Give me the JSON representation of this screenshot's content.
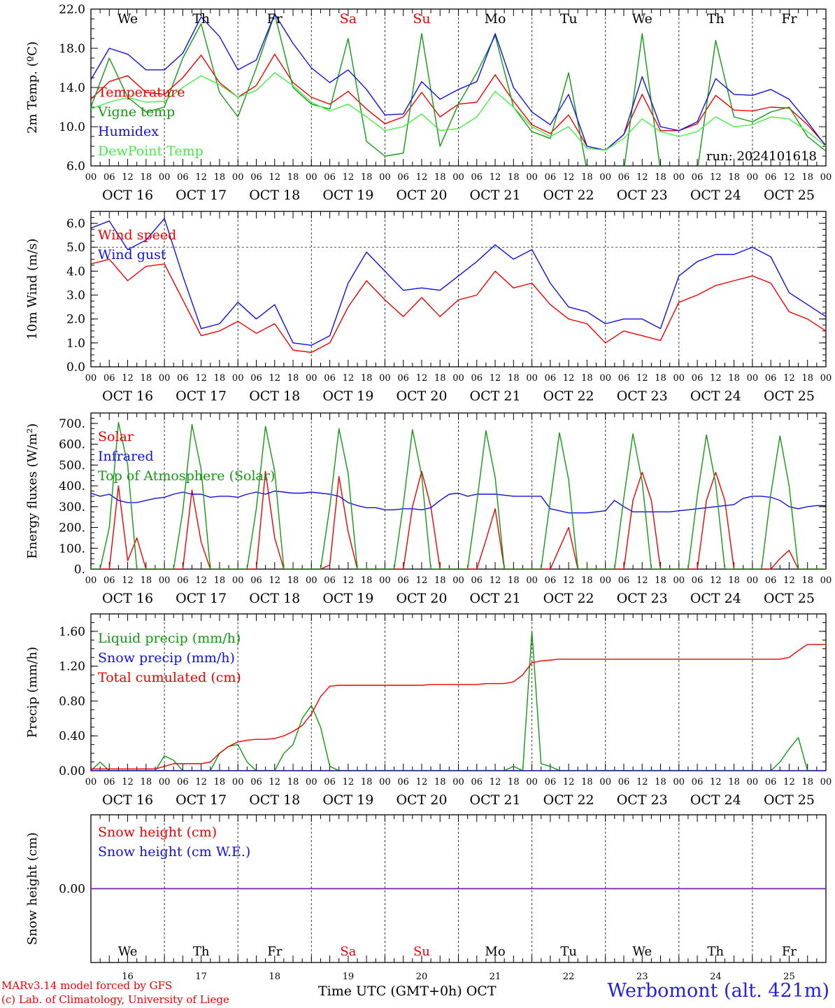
{
  "colors": {
    "red": "#ee0000",
    "green": "#119911",
    "blue": "#1111dd",
    "lightgreen": "#44ee44",
    "purple": "#7722aa",
    "frame": "#000000"
  },
  "days": {
    "date_labels": [
      "OCT 16",
      "OCT 17",
      "OCT 18",
      "OCT 19",
      "OCT 20",
      "OCT 21",
      "OCT 22",
      "OCT 23",
      "OCT 24",
      "OCT 25"
    ],
    "weekday_labels": [
      "We",
      "Th",
      "Fr",
      "Sa",
      "Su",
      "Mo",
      "Tu",
      "We",
      "Th",
      "Fr"
    ],
    "weekend_indices": [
      3,
      4
    ],
    "day_numbers": [
      "16",
      "17",
      "18",
      "19",
      "20",
      "21",
      "22",
      "23",
      "24",
      "25"
    ],
    "hour_ticks": [
      "00",
      "06",
      "12",
      "18"
    ],
    "end_tick": "00"
  },
  "footer": {
    "credit_line1": "MARv3.14 model forced by GFS",
    "credit_line2": "(c) Lab. of Climatology, University of Liege",
    "xaxis_title": "Time UTC (GMT+0h) OCT",
    "station": "Werbomont (alt. 421m)"
  },
  "chart_data": [
    {
      "type": "line",
      "ylabel": "2m Temp. (ºC)",
      "ylim": [
        6.0,
        22.0
      ],
      "yticks": [
        6.0,
        10.0,
        14.0,
        18.0,
        22.0
      ],
      "tick_decimals": 1,
      "run_label": "run: 2024101618",
      "x_hours": [
        0,
        6,
        12,
        18,
        24,
        30,
        36,
        42,
        48,
        54,
        60,
        66,
        72,
        78,
        84,
        90,
        96,
        102,
        108,
        114,
        120,
        126,
        132,
        138,
        144,
        150,
        156,
        162,
        168,
        174,
        180,
        186,
        192,
        198,
        204,
        210,
        216,
        222,
        228,
        234,
        240
      ],
      "series": [
        {
          "name": "Temperature",
          "color": "red",
          "values": [
            12.8,
            14.6,
            15.2,
            13.5,
            13.3,
            15.0,
            17.3,
            14.5,
            13.0,
            14.2,
            17.4,
            14.5,
            13.0,
            12.3,
            13.6,
            11.8,
            10.3,
            11.0,
            13.5,
            11.0,
            12.3,
            12.5,
            15.3,
            12.6,
            10.2,
            9.3,
            11.2,
            8.0,
            7.6,
            9.2,
            13.3,
            9.6,
            9.6,
            10.3,
            13.2,
            11.7,
            11.6,
            12.0,
            11.9,
            10.2,
            8.1
          ]
        },
        {
          "name": "Vigne temp",
          "color": "green",
          "values": [
            12.0,
            17.0,
            13.0,
            11.5,
            12.0,
            17.0,
            20.5,
            13.5,
            11.0,
            16.0,
            21.5,
            14.0,
            12.3,
            11.8,
            19.0,
            8.5,
            7.0,
            7.3,
            19.5,
            8.0,
            12.3,
            15.5,
            19.3,
            12.0,
            9.5,
            8.8,
            15.5,
            5.5,
            4.5,
            5.5,
            19.5,
            5.5,
            5.0,
            5.5,
            18.8,
            11.0,
            10.5,
            11.5,
            12.0,
            9.0,
            7.5
          ]
        },
        {
          "name": "Humidex",
          "color": "blue",
          "values": [
            14.8,
            18.0,
            17.4,
            15.8,
            15.8,
            17.5,
            21.2,
            19.2,
            15.8,
            16.8,
            21.5,
            18.5,
            16.0,
            14.5,
            15.8,
            13.8,
            11.2,
            11.3,
            14.6,
            12.8,
            13.8,
            14.6,
            19.5,
            14.0,
            11.5,
            10.2,
            13.3,
            8.0,
            7.6,
            9.2,
            15.1,
            10.0,
            9.6,
            10.5,
            14.9,
            13.3,
            13.2,
            13.8,
            12.8,
            10.5,
            8.0
          ]
        },
        {
          "name": "DewPoint Temp",
          "color": "lightgreen",
          "values": [
            11.8,
            12.5,
            13.0,
            12.5,
            12.6,
            14.0,
            15.2,
            14.3,
            13.0,
            13.7,
            15.5,
            14.2,
            12.5,
            11.6,
            12.3,
            11.0,
            9.6,
            10.0,
            11.3,
            9.6,
            9.8,
            11.0,
            13.6,
            12.0,
            10.0,
            9.0,
            10.0,
            7.8,
            7.6,
            8.8,
            10.8,
            9.5,
            9.0,
            9.5,
            11.0,
            10.0,
            10.2,
            11.0,
            10.8,
            9.5,
            8.0
          ]
        }
      ]
    },
    {
      "type": "line",
      "ylabel": "10m Wind (m/s)",
      "ylim": [
        0.0,
        6.5
      ],
      "yticks": [
        0.0,
        1.0,
        2.0,
        3.0,
        4.0,
        5.0,
        6.0
      ],
      "tick_decimals": 1,
      "reference_line": 5.0,
      "x_hours": [
        0,
        6,
        12,
        18,
        24,
        30,
        36,
        42,
        48,
        54,
        60,
        66,
        72,
        78,
        84,
        90,
        96,
        102,
        108,
        114,
        120,
        126,
        132,
        138,
        144,
        150,
        156,
        162,
        168,
        174,
        180,
        186,
        192,
        198,
        204,
        210,
        216,
        222,
        228,
        234,
        240
      ],
      "series": [
        {
          "name": "Wind speed",
          "color": "red",
          "values": [
            4.3,
            4.5,
            3.6,
            4.2,
            4.3,
            2.8,
            1.3,
            1.5,
            1.9,
            1.4,
            1.8,
            0.7,
            0.6,
            1.0,
            2.5,
            3.6,
            2.8,
            2.1,
            2.9,
            2.1,
            2.8,
            3.0,
            4.0,
            3.3,
            3.5,
            2.6,
            2.0,
            1.8,
            1.0,
            1.5,
            1.3,
            1.1,
            2.7,
            3.0,
            3.4,
            3.6,
            3.8,
            3.5,
            2.3,
            2.0,
            1.5
          ]
        },
        {
          "name": "Wind gust",
          "color": "blue",
          "values": [
            5.8,
            6.1,
            4.9,
            5.3,
            6.2,
            3.8,
            1.6,
            1.8,
            2.7,
            2.0,
            2.6,
            1.0,
            0.9,
            1.3,
            3.5,
            4.8,
            4.0,
            3.2,
            3.3,
            3.2,
            3.8,
            4.4,
            5.1,
            4.5,
            4.9,
            3.5,
            2.5,
            2.3,
            1.8,
            2.0,
            2.0,
            1.6,
            3.8,
            4.4,
            4.7,
            4.7,
            5.0,
            4.6,
            3.1,
            2.6,
            2.1
          ]
        }
      ]
    },
    {
      "type": "line",
      "ylabel": "Energy fluxes (W/m²)",
      "ylim": [
        0,
        750
      ],
      "yticks": [
        0,
        100,
        200,
        300,
        400,
        500,
        600,
        700
      ],
      "tick_decimals": 0,
      "tick_suffix": ".",
      "x_hours": [
        0,
        3,
        6,
        9,
        12,
        15,
        18,
        21,
        24,
        27,
        30,
        33,
        36,
        39,
        42,
        45,
        48,
        51,
        54,
        57,
        60,
        63,
        66,
        69,
        72,
        75,
        78,
        81,
        84,
        87,
        90,
        93,
        96,
        99,
        102,
        105,
        108,
        111,
        114,
        117,
        120,
        123,
        126,
        129,
        132,
        135,
        138,
        141,
        144,
        147,
        150,
        153,
        156,
        159,
        162,
        165,
        168,
        171,
        174,
        177,
        180,
        183,
        186,
        189,
        192,
        195,
        198,
        201,
        204,
        207,
        210,
        213,
        216,
        219,
        222,
        225,
        228,
        231,
        234,
        237,
        240
      ],
      "series": [
        {
          "name": "Solar",
          "color": "red",
          "values": [
            0,
            0,
            0,
            400,
            40,
            150,
            0,
            0,
            0,
            0,
            0,
            380,
            130,
            0,
            0,
            0,
            0,
            0,
            0,
            470,
            150,
            0,
            0,
            0,
            0,
            0,
            20,
            445,
            180,
            0,
            0,
            0,
            0,
            0,
            0,
            300,
            470,
            300,
            0,
            0,
            0,
            0,
            0,
            140,
            290,
            0,
            0,
            0,
            0,
            0,
            0,
            100,
            200,
            0,
            0,
            0,
            0,
            0,
            0,
            330,
            465,
            330,
            0,
            0,
            0,
            0,
            0,
            330,
            465,
            330,
            0,
            0,
            0,
            0,
            0,
            50,
            90,
            0,
            0,
            0,
            0
          ]
        },
        {
          "name": "Infrared",
          "color": "blue",
          "values": [
            365,
            350,
            360,
            330,
            320,
            320,
            330,
            340,
            345,
            360,
            370,
            360,
            360,
            345,
            350,
            350,
            345,
            360,
            370,
            360,
            375,
            370,
            365,
            365,
            370,
            365,
            360,
            350,
            320,
            305,
            295,
            295,
            285,
            285,
            290,
            290,
            285,
            295,
            330,
            360,
            365,
            350,
            360,
            360,
            360,
            355,
            350,
            350,
            350,
            350,
            290,
            280,
            270,
            270,
            270,
            275,
            280,
            330,
            300,
            275,
            275,
            275,
            275,
            275,
            280,
            285,
            290,
            295,
            300,
            305,
            310,
            340,
            350,
            350,
            345,
            330,
            300,
            290,
            300,
            305,
            305
          ]
        },
        {
          "name": "Top of Atmosphere (Solar)",
          "color": "green",
          "values": [
            0,
            0,
            200,
            705,
            500,
            0,
            0,
            0,
            0,
            0,
            280,
            695,
            480,
            0,
            0,
            0,
            0,
            0,
            290,
            685,
            470,
            0,
            0,
            0,
            0,
            0,
            300,
            675,
            460,
            0,
            0,
            0,
            0,
            0,
            310,
            670,
            450,
            0,
            0,
            0,
            0,
            0,
            320,
            665,
            440,
            0,
            0,
            0,
            0,
            0,
            330,
            655,
            430,
            0,
            0,
            0,
            0,
            0,
            340,
            650,
            420,
            0,
            0,
            0,
            0,
            0,
            350,
            645,
            410,
            0,
            0,
            0,
            0,
            0,
            360,
            640,
            400,
            0,
            0,
            0,
            0
          ]
        }
      ]
    },
    {
      "type": "line",
      "ylabel": "Precip (mm/h)",
      "ylim": [
        0.0,
        1.8
      ],
      "yticks": [
        0.0,
        0.4,
        0.8,
        1.2,
        1.6
      ],
      "tick_decimals": 2,
      "x_hours": [
        0,
        3,
        6,
        9,
        12,
        15,
        18,
        21,
        24,
        27,
        30,
        33,
        36,
        39,
        42,
        45,
        48,
        51,
        54,
        57,
        60,
        63,
        66,
        69,
        72,
        75,
        78,
        81,
        84,
        87,
        90,
        93,
        96,
        99,
        102,
        105,
        108,
        111,
        114,
        117,
        120,
        123,
        126,
        129,
        132,
        135,
        138,
        141,
        144,
        147,
        150,
        153,
        156,
        159,
        162,
        165,
        168,
        171,
        174,
        177,
        180,
        183,
        186,
        189,
        192,
        195,
        198,
        201,
        204,
        207,
        210,
        213,
        216,
        219,
        222,
        225,
        228,
        231,
        234,
        237,
        240
      ],
      "series": [
        {
          "name": "Liquid precip (mm/h)",
          "color": "green",
          "values": [
            0,
            0.1,
            0,
            0,
            0,
            0,
            0,
            0,
            0.17,
            0.12,
            0,
            0,
            0,
            0,
            0.2,
            0.28,
            0.3,
            0.1,
            0,
            0,
            0,
            0.2,
            0.3,
            0.6,
            0.75,
            0.5,
            0.05,
            0,
            0,
            0,
            0,
            0,
            0,
            0,
            0,
            0,
            0,
            0,
            0,
            0,
            0,
            0,
            0,
            0,
            0,
            0,
            0.05,
            0,
            1.6,
            0.08,
            0.05,
            0,
            0,
            0,
            0,
            0,
            0,
            0,
            0,
            0,
            0,
            0,
            0,
            0,
            0,
            0,
            0,
            0,
            0,
            0,
            0,
            0,
            0,
            0,
            0,
            0.1,
            0.25,
            0.38,
            0,
            0,
            0
          ]
        },
        {
          "name": "Snow precip (mm/h)",
          "color": "blue",
          "values": [
            0,
            0,
            0,
            0,
            0,
            0,
            0,
            0,
            0,
            0,
            0,
            0,
            0,
            0,
            0,
            0,
            0,
            0,
            0,
            0,
            0,
            0,
            0,
            0,
            0,
            0,
            0,
            0,
            0,
            0,
            0,
            0,
            0,
            0,
            0,
            0,
            0,
            0,
            0,
            0,
            0,
            0,
            0,
            0,
            0,
            0,
            0,
            0,
            0,
            0,
            0,
            0,
            0,
            0,
            0,
            0,
            0,
            0,
            0,
            0,
            0,
            0,
            0,
            0,
            0,
            0,
            0,
            0,
            0,
            0,
            0,
            0,
            0,
            0,
            0,
            0,
            0,
            0,
            0,
            0,
            0
          ]
        },
        {
          "name": "Total cumulated (cm)",
          "color": "red",
          "values": [
            0.02,
            0.02,
            0.02,
            0.02,
            0.02,
            0.02,
            0.02,
            0.02,
            0.05,
            0.08,
            0.08,
            0.08,
            0.08,
            0.1,
            0.2,
            0.28,
            0.33,
            0.35,
            0.36,
            0.36,
            0.37,
            0.4,
            0.45,
            0.52,
            0.65,
            0.85,
            0.97,
            0.98,
            0.98,
            0.98,
            0.98,
            0.98,
            0.98,
            0.98,
            0.98,
            0.98,
            0.98,
            0.99,
            0.99,
            0.99,
            0.99,
            0.99,
            0.99,
            1.0,
            1.0,
            1.0,
            1.02,
            1.1,
            1.24,
            1.26,
            1.27,
            1.28,
            1.28,
            1.28,
            1.28,
            1.28,
            1.28,
            1.28,
            1.28,
            1.28,
            1.28,
            1.28,
            1.28,
            1.28,
            1.28,
            1.28,
            1.28,
            1.28,
            1.28,
            1.28,
            1.28,
            1.28,
            1.28,
            1.28,
            1.28,
            1.28,
            1.3,
            1.38,
            1.45,
            1.45,
            1.45
          ]
        }
      ]
    },
    {
      "type": "line",
      "ylabel": "Snow height (cm)",
      "ylim": [
        -1.0,
        1.0
      ],
      "yticks": [
        0.0
      ],
      "tick_decimals": 2,
      "x_hours": [
        0,
        240
      ],
      "series": [
        {
          "name": "Snow height (cm)",
          "color": "red",
          "values": [
            0,
            0
          ]
        },
        {
          "name": "Snow height (cm W.E.)",
          "color": "blue",
          "values": [
            0,
            0
          ]
        }
      ]
    }
  ]
}
